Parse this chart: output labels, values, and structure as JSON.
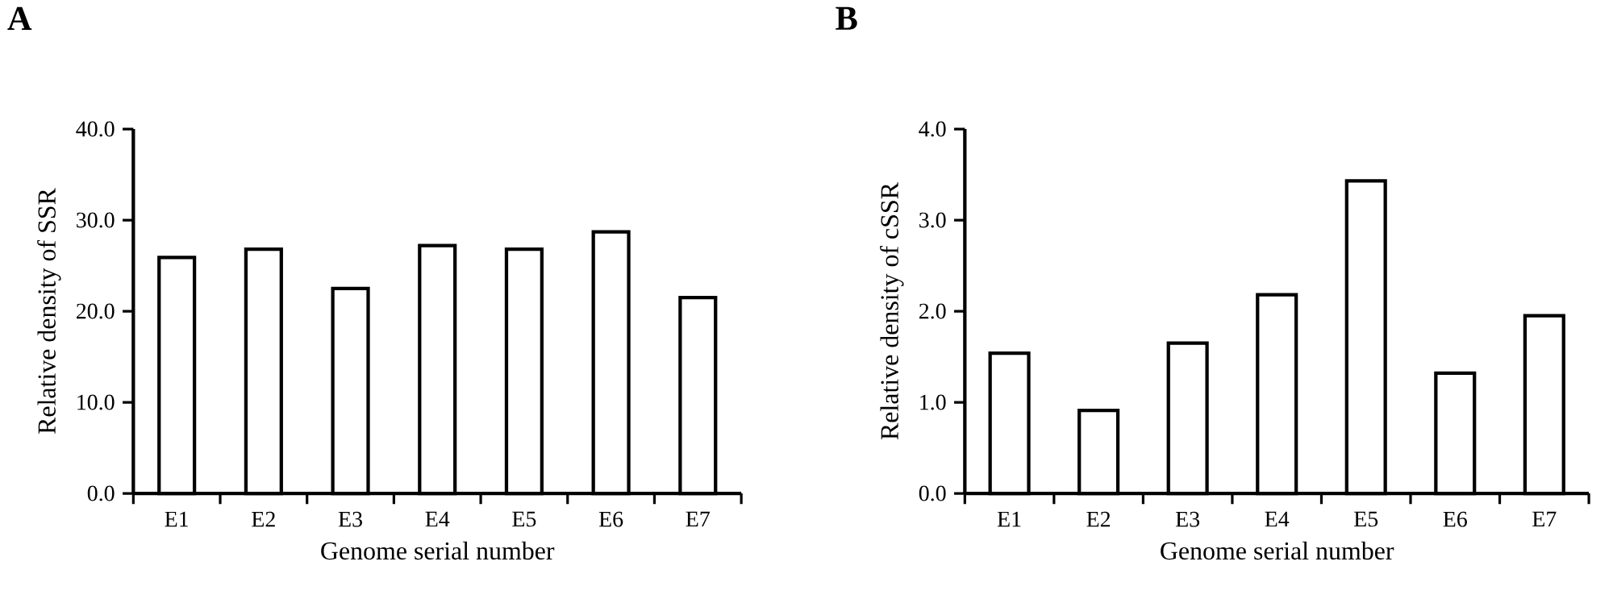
{
  "chart_data": [
    {
      "type": "bar",
      "title": "A",
      "xlabel": "Genome serial number",
      "ylabel": "Relative density of SSR",
      "categories": [
        "E1",
        "E2",
        "E3",
        "E4",
        "E5",
        "E6",
        "E7"
      ],
      "values": [
        25.9,
        26.8,
        22.5,
        27.2,
        26.8,
        28.7,
        21.5
      ],
      "color": "#000000",
      "ylim": [
        0,
        40
      ],
      "yticks": [
        {
          "value": 0,
          "label": "0.0"
        },
        {
          "value": 10,
          "label": "10.0"
        },
        {
          "value": 20,
          "label": "20.0"
        },
        {
          "value": 30,
          "label": "30.0"
        },
        {
          "value": 40,
          "label": "40.0"
        }
      ],
      "grid": false
    },
    {
      "type": "bar",
      "title": "B",
      "xlabel": "Genome serial number",
      "ylabel": "Relative density of cSSR",
      "categories": [
        "E1",
        "E2",
        "E3",
        "E4",
        "E5",
        "E6",
        "E7"
      ],
      "values": [
        1.54,
        0.91,
        1.65,
        2.18,
        3.43,
        1.32,
        1.95
      ],
      "color": "#000000",
      "ylim": [
        0,
        4
      ],
      "yticks": [
        {
          "value": 0,
          "label": "0.0"
        },
        {
          "value": 1,
          "label": "1.0"
        },
        {
          "value": 2,
          "label": "2.0"
        },
        {
          "value": 3,
          "label": "3.0"
        },
        {
          "value": 4,
          "label": "4.0"
        }
      ],
      "grid": false
    }
  ]
}
